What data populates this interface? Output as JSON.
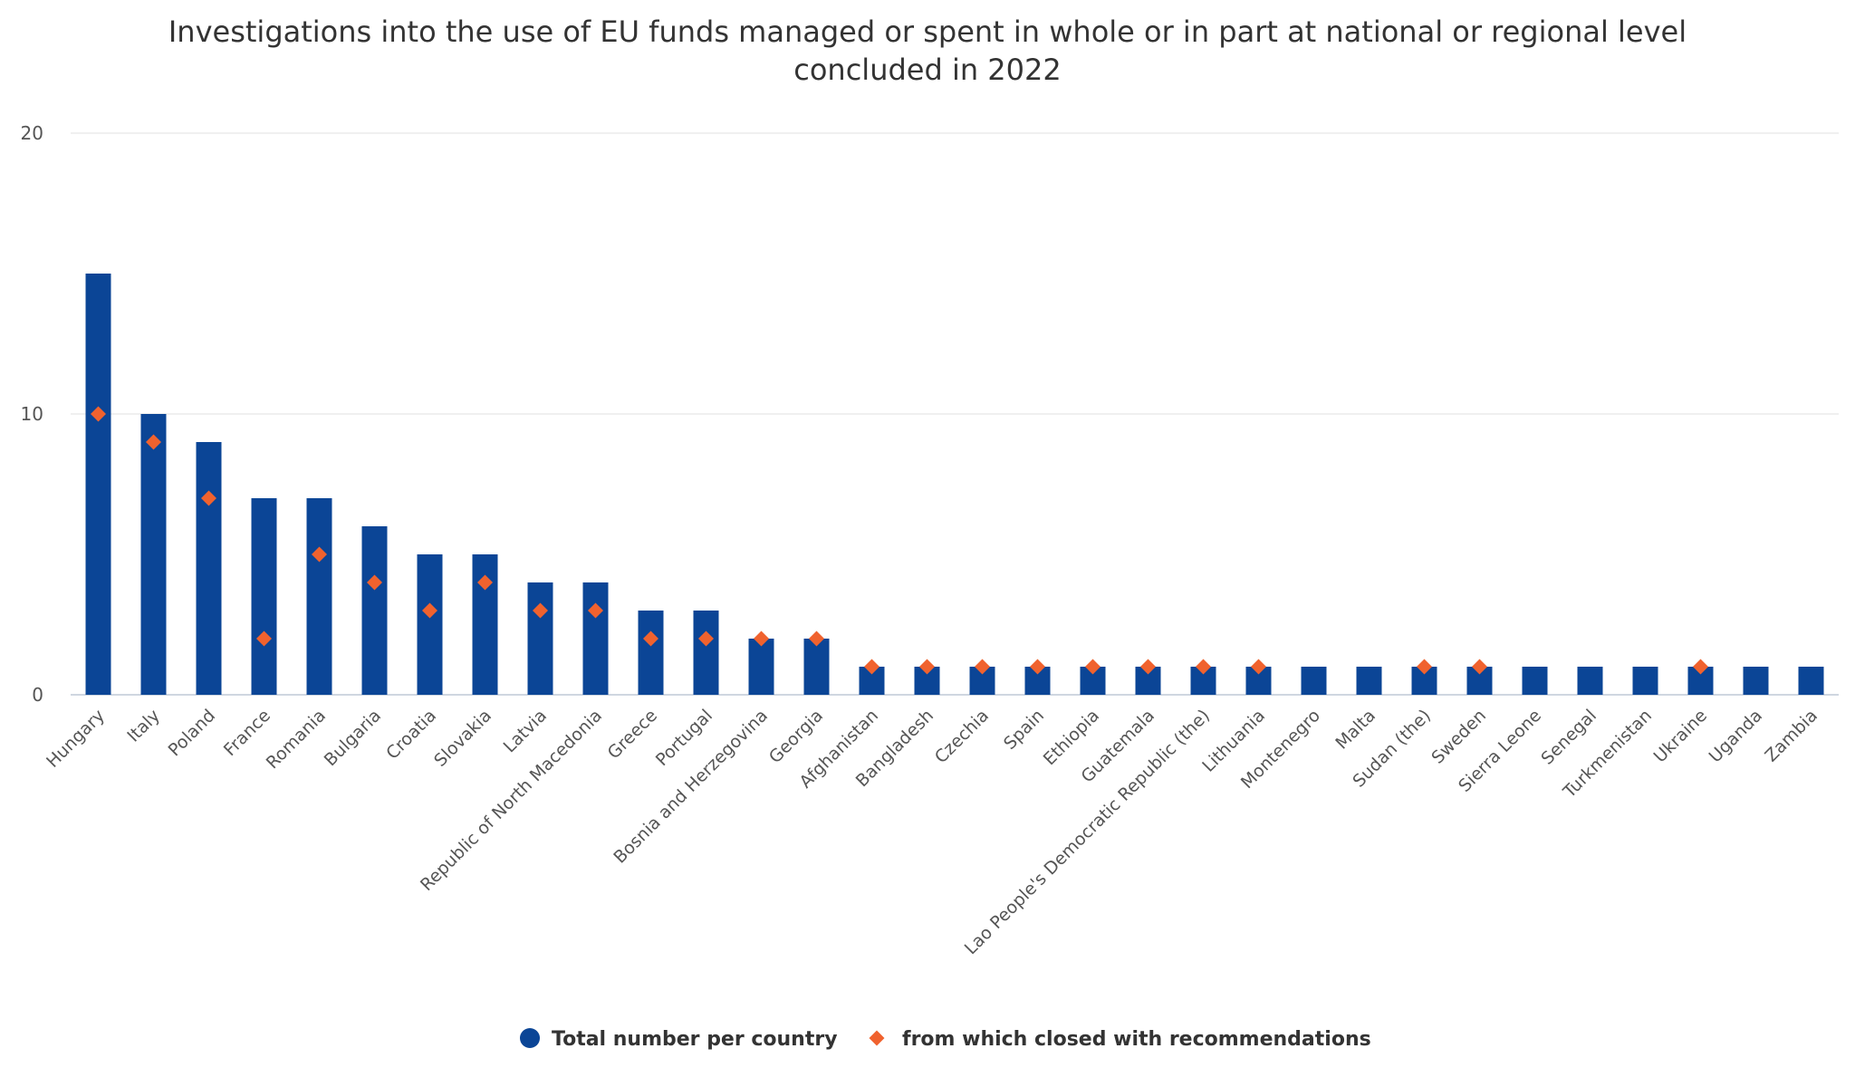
{
  "chart_data": {
    "type": "bar",
    "title_line1": "Investigations into the use of EU funds managed or spent in whole or in part at national or regional level",
    "title_line2": "concluded in 2022",
    "ylim": [
      0,
      20
    ],
    "yticks": [
      "0",
      "10",
      "20"
    ],
    "grid": true,
    "legend_position": "bottom-center",
    "categories": [
      "Hungary",
      "Italy",
      "Poland",
      "France",
      "Romania",
      "Bulgaria",
      "Croatia",
      "Slovakia",
      "Latvia",
      "Republic of North Macedonia",
      "Greece",
      "Portugal",
      "Bosnia and Herzegovina",
      "Georgia",
      "Afghanistan",
      "Bangladesh",
      "Czechia",
      "Spain",
      "Ethiopia",
      "Guatemala",
      "Lao People's Democratic Republic (the)",
      "Lithuania",
      "Montenegro",
      "Malta",
      "Sudan (the)",
      "Sweden",
      "Sierra Leone",
      "Senegal",
      "Turkmenistan",
      "Ukraine",
      "Uganda",
      "Zambia"
    ],
    "series": [
      {
        "name": "Total number per country",
        "kind": "bar",
        "color": "#0b4596",
        "values": [
          15,
          10,
          9,
          7,
          7,
          6,
          5,
          5,
          4,
          4,
          3,
          3,
          2,
          2,
          1,
          1,
          1,
          1,
          1,
          1,
          1,
          1,
          1,
          1,
          1,
          1,
          1,
          1,
          1,
          1,
          1,
          1
        ]
      },
      {
        "name": "from which closed with recommendations",
        "kind": "marker",
        "color": "#f0622e",
        "values": [
          10,
          9,
          7,
          2,
          5,
          4,
          3,
          4,
          3,
          3,
          2,
          2,
          2,
          2,
          1,
          1,
          1,
          1,
          1,
          1,
          1,
          1,
          null,
          null,
          1,
          1,
          null,
          null,
          null,
          1,
          null,
          null
        ]
      }
    ]
  }
}
